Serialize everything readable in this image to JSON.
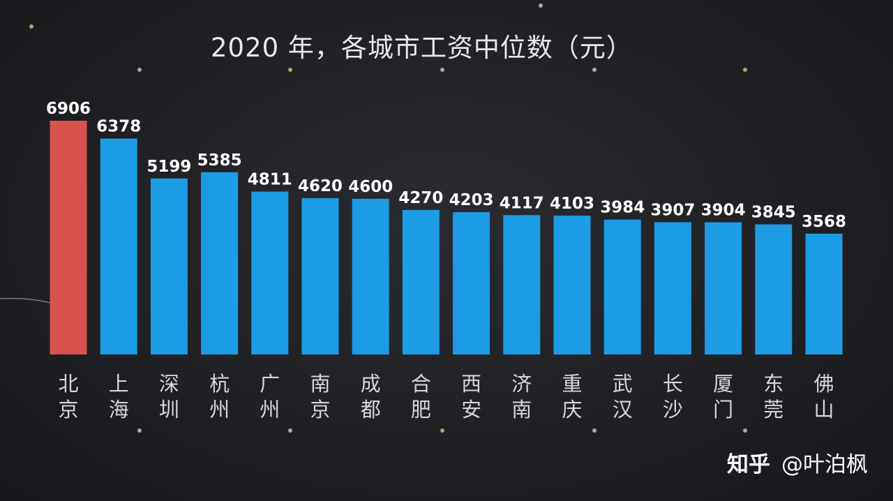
{
  "chart_data": {
    "type": "bar",
    "title": "2020 年，各城市工资中位数（元）",
    "xlabel": "",
    "ylabel": "",
    "ylim": [
      0,
      7300
    ],
    "grid": false,
    "categories": [
      "北京",
      "上海",
      "深圳",
      "杭州",
      "广州",
      "南京",
      "成都",
      "合肥",
      "西安",
      "济南",
      "重庆",
      "武汉",
      "长沙",
      "厦门",
      "东莞",
      "佛山"
    ],
    "values": [
      6906,
      6378,
      5199,
      5385,
      4811,
      4620,
      4600,
      4270,
      4203,
      4117,
      4103,
      3984,
      3907,
      3904,
      3845,
      3568
    ],
    "value_labels": [
      "6906",
      "6378",
      "5199",
      "5385",
      "4811",
      "4620",
      "4600",
      "4270",
      "4203",
      "4117",
      "4103",
      "3984",
      "3907",
      "3904",
      "3845",
      "3568"
    ],
    "colors": {
      "highlight": "#d9534e",
      "default": "#1c9ce5"
    },
    "highlight_index": 0
  },
  "watermark": {
    "site": "知乎",
    "handle": "@叶泊枫"
  }
}
